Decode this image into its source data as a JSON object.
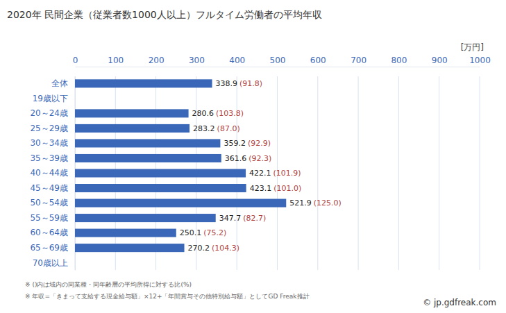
{
  "chart_data": {
    "type": "bar",
    "orientation": "horizontal",
    "title": "2020年 民間企業（従業者数1000人以上）フルタイム労働者の平均年収",
    "unit_label": "[万円]",
    "categories": [
      "全体",
      "19歳以下",
      "20～24歳",
      "25～29歳",
      "30～34歳",
      "35～39歳",
      "40～44歳",
      "45～49歳",
      "50～54歳",
      "55～59歳",
      "60～64歳",
      "65～69歳",
      "70歳以上"
    ],
    "values": [
      338.9,
      null,
      280.6,
      283.2,
      359.2,
      361.6,
      422.1,
      423.1,
      521.9,
      347.7,
      250.1,
      270.2,
      null
    ],
    "ratio_labels": [
      "(91.8)",
      null,
      "(103.8)",
      "(87.0)",
      "(92.9)",
      "(92.3)",
      "(101.9)",
      "(101.0)",
      "(125.0)",
      "(82.7)",
      "(75.2)",
      "(104.3)",
      null
    ],
    "color": "#3a67b8",
    "xlim": [
      0,
      1000
    ],
    "xticks": [
      0,
      100,
      200,
      300,
      400,
      500,
      600,
      700,
      800,
      900,
      1000
    ],
    "grid": true,
    "data_labels": true,
    "notes": [
      "※ ()内は域内の同業種・同年齢層の平均所得に対する比(%)",
      "※ 年収=「きまって支給する現金給与額」×12+「年間賞与その他特別給与額」としてGD Freak推計"
    ],
    "source": "© jp.gdfreak.com"
  }
}
